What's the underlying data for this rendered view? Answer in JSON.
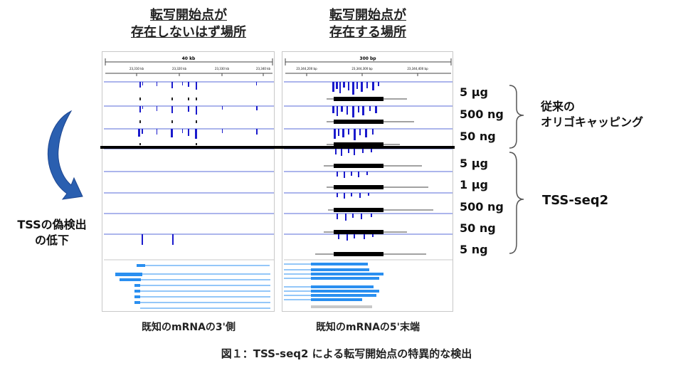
{
  "headers": {
    "left": [
      "転写開始点が",
      "存在しないはず場所"
    ],
    "right": [
      "転写開始点が",
      "存在する場所"
    ]
  },
  "left_panel": {
    "scale_label": "40 kb",
    "ticks": [
      "23,310 kb",
      "23,320 kb",
      "23,330 kb",
      "23,340 kb"
    ],
    "caption": "既知のmRNAの3'側"
  },
  "right_panel": {
    "scale_label": "300 bp",
    "ticks": [
      "23,344,200 bp",
      "23,344,300 bp",
      "23,344,400 bp"
    ],
    "caption": "既知のmRNAの5'末端"
  },
  "groups": {
    "conventional": {
      "label_lines": [
        "従来の",
        "オリゴキャッピング"
      ],
      "amounts": [
        "5 µg",
        "500 ng",
        "50 ng"
      ]
    },
    "tss_seq2": {
      "label": "TSS-seq2",
      "amounts": [
        "5 µg",
        "1 µg",
        "500 ng",
        "50 ng",
        "5 ng"
      ]
    }
  },
  "arrow_note": [
    "TSSの偽検出",
    "の低下"
  ],
  "figure_caption": "図１：TSS-seq2 による転写開始点の特異的な検出",
  "colors": {
    "signal": "#1a1acc",
    "track_line": "#5a6bd8",
    "gene": "#2a8ff0",
    "arrow": "#2a5fb0",
    "divider": "#000000"
  }
}
